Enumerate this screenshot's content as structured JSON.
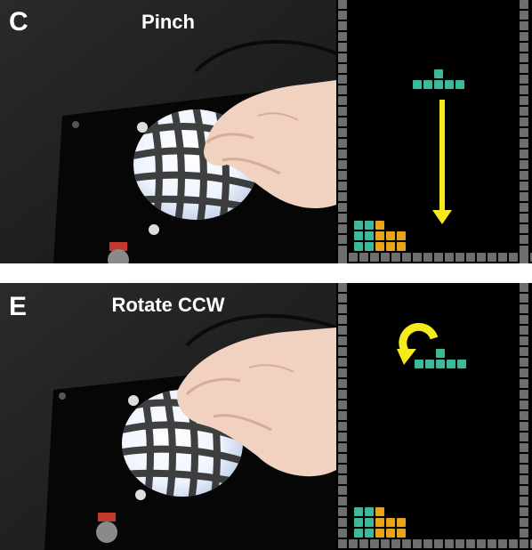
{
  "panels": [
    {
      "letter": "C",
      "gesture": "Pinch",
      "game_cue": "down-arrow",
      "colors": {
        "teal": "#3cb89a",
        "gold": "#e8a418",
        "cue": "#f7ea1c",
        "wall": "#6e6e6e",
        "field": "#000000"
      }
    },
    {
      "letter": "E",
      "gesture": "Rotate CCW",
      "game_cue": "rotate-ccw-arrow",
      "colors": {
        "teal": "#3cb89a",
        "gold": "#e8a418",
        "cue": "#f7ea1c",
        "wall": "#6e6e6e",
        "field": "#000000"
      }
    }
  ]
}
